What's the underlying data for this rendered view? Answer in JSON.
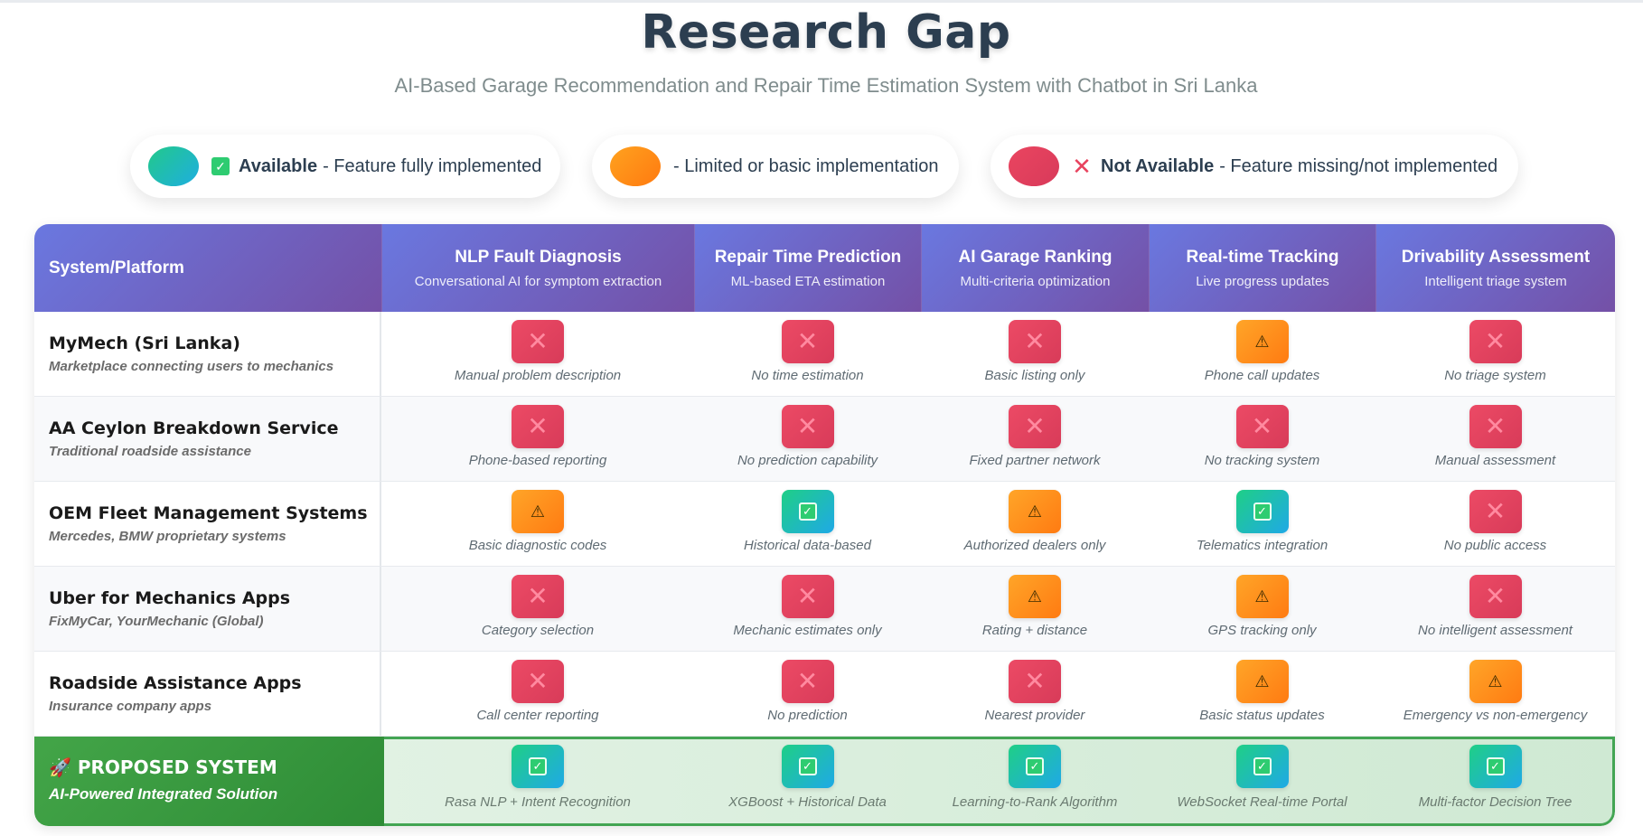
{
  "title": "Research Gap",
  "subtitle": "AI-Based Garage Recommendation and Repair Time Estimation System with Chatbot in Sri Lanka",
  "legend": [
    {
      "status": "available",
      "icon": "check-icon",
      "label": "Available",
      "text": "- Feature fully implemented"
    },
    {
      "status": "limited",
      "icon": "",
      "label": "",
      "text": "- Limited or basic implementation"
    },
    {
      "status": "not_available",
      "icon": "cross-icon",
      "label": "Not Available",
      "text": "- Feature missing/not implemented"
    }
  ],
  "table": {
    "first_header": "System/Platform",
    "columns": [
      {
        "title": "NLP Fault Diagnosis",
        "subtitle": "Conversational AI for symptom extraction"
      },
      {
        "title": "Repair Time Prediction",
        "subtitle": "ML-based ETA estimation"
      },
      {
        "title": "AI Garage Ranking",
        "subtitle": "Multi-criteria optimization"
      },
      {
        "title": "Real-time Tracking",
        "subtitle": "Live progress updates"
      },
      {
        "title": "Drivability Assessment",
        "subtitle": "Intelligent triage system"
      }
    ],
    "rows": [
      {
        "name": "MyMech (Sri Lanka)",
        "desc": "Marketplace connecting users to mechanics",
        "cells": [
          {
            "status": "no",
            "text": "Manual problem description"
          },
          {
            "status": "no",
            "text": "No time estimation"
          },
          {
            "status": "no",
            "text": "Basic listing only"
          },
          {
            "status": "limited",
            "text": "Phone call updates"
          },
          {
            "status": "no",
            "text": "No triage system"
          }
        ]
      },
      {
        "name": "AA Ceylon Breakdown Service",
        "desc": "Traditional roadside assistance",
        "cells": [
          {
            "status": "no",
            "text": "Phone-based reporting"
          },
          {
            "status": "no",
            "text": "No prediction capability"
          },
          {
            "status": "no",
            "text": "Fixed partner network"
          },
          {
            "status": "no",
            "text": "No tracking system"
          },
          {
            "status": "no",
            "text": "Manual assessment"
          }
        ]
      },
      {
        "name": "OEM Fleet Management Systems",
        "desc": "Mercedes, BMW proprietary systems",
        "cells": [
          {
            "status": "limited",
            "text": "Basic diagnostic codes"
          },
          {
            "status": "yes",
            "text": "Historical data-based"
          },
          {
            "status": "limited",
            "text": "Authorized dealers only"
          },
          {
            "status": "yes",
            "text": "Telematics integration"
          },
          {
            "status": "no",
            "text": "No public access"
          }
        ]
      },
      {
        "name": "Uber for Mechanics Apps",
        "desc": "FixMyCar, YourMechanic (Global)",
        "cells": [
          {
            "status": "no",
            "text": "Category selection"
          },
          {
            "status": "no",
            "text": "Mechanic estimates only"
          },
          {
            "status": "limited",
            "text": "Rating + distance"
          },
          {
            "status": "limited",
            "text": "GPS tracking only"
          },
          {
            "status": "no",
            "text": "No intelligent assessment"
          }
        ]
      },
      {
        "name": "Roadside Assistance Apps",
        "desc": "Insurance company apps",
        "cells": [
          {
            "status": "no",
            "text": "Call center reporting"
          },
          {
            "status": "no",
            "text": "No prediction"
          },
          {
            "status": "no",
            "text": "Nearest provider"
          },
          {
            "status": "limited",
            "text": "Basic status updates"
          },
          {
            "status": "limited",
            "text": "Emergency vs non-emergency"
          }
        ]
      }
    ],
    "proposed": {
      "name": "🚀 PROPOSED SYSTEM",
      "desc": "AI-Powered Integrated Solution",
      "cells": [
        {
          "status": "yes",
          "text": "Rasa NLP + Intent Recognition"
        },
        {
          "status": "yes",
          "text": "XGBoost + Historical Data"
        },
        {
          "status": "yes",
          "text": "Learning-to-Rank Algorithm"
        },
        {
          "status": "yes",
          "text": "WebSocket Real-time Portal"
        },
        {
          "status": "yes",
          "text": "Multi-factor Decision Tree"
        }
      ]
    }
  },
  "colors": {
    "header": "#6a78e0",
    "available": "#22c98a",
    "limited": "#ff8f1a",
    "not_available": "#e8425e",
    "proposed": "#43a548"
  }
}
